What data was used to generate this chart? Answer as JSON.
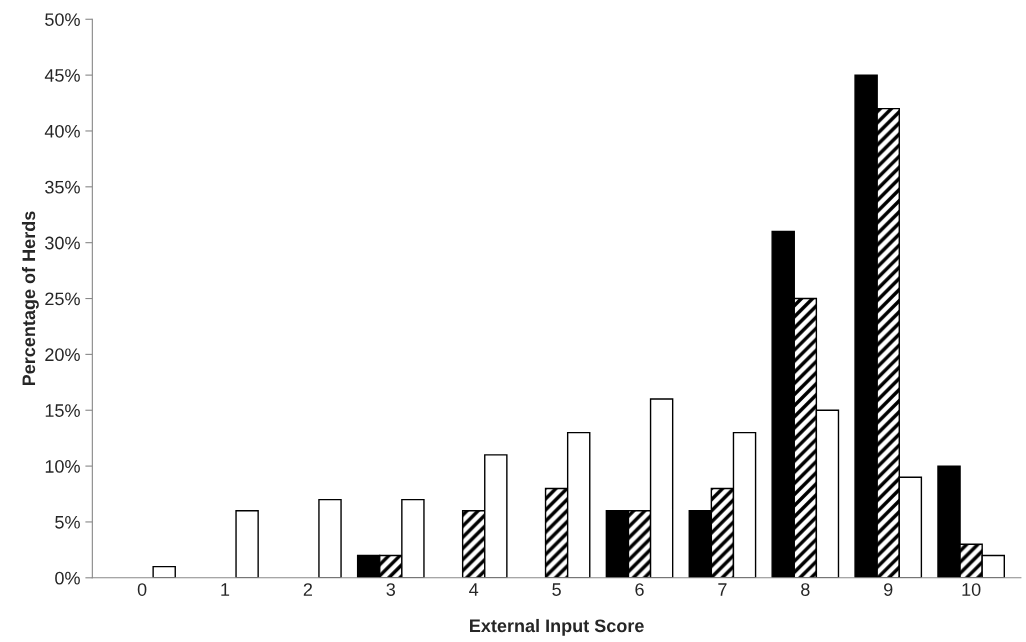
{
  "chart_data": {
    "type": "bar",
    "xlabel": "External Input Score",
    "ylabel": "Percentage of Herds",
    "categories": [
      "0",
      "1",
      "2",
      "3",
      "4",
      "5",
      "6",
      "7",
      "8",
      "9",
      "10"
    ],
    "series": [
      {
        "color": "#000000",
        "values": [
          0,
          0,
          0,
          2,
          0,
          0,
          6,
          6,
          31,
          45,
          10
        ]
      },
      {
        "color": "#000000",
        "values": [
          0,
          0,
          0,
          2,
          6,
          8,
          6,
          8,
          25,
          42,
          3
        ]
      },
      {
        "color": "#ffffff",
        "values": [
          1,
          6,
          7,
          7,
          11,
          13,
          16,
          13,
          15,
          9,
          2
        ]
      }
    ],
    "ylim": [
      0,
      50
    ],
    "yticks": [
      {
        "value": 0,
        "label": "0%"
      },
      {
        "value": 5,
        "label": "5%"
      },
      {
        "value": 10,
        "label": "10%"
      },
      {
        "value": 15,
        "label": "15%"
      },
      {
        "value": 20,
        "label": "20%"
      },
      {
        "value": 25,
        "label": "25%"
      },
      {
        "value": 30,
        "label": "30%"
      },
      {
        "value": 35,
        "label": "35%"
      },
      {
        "value": 40,
        "label": "40%"
      },
      {
        "value": 45,
        "label": "45%"
      },
      {
        "value": 50,
        "label": "50%"
      }
    ],
    "grid": false,
    "legend": false
  }
}
